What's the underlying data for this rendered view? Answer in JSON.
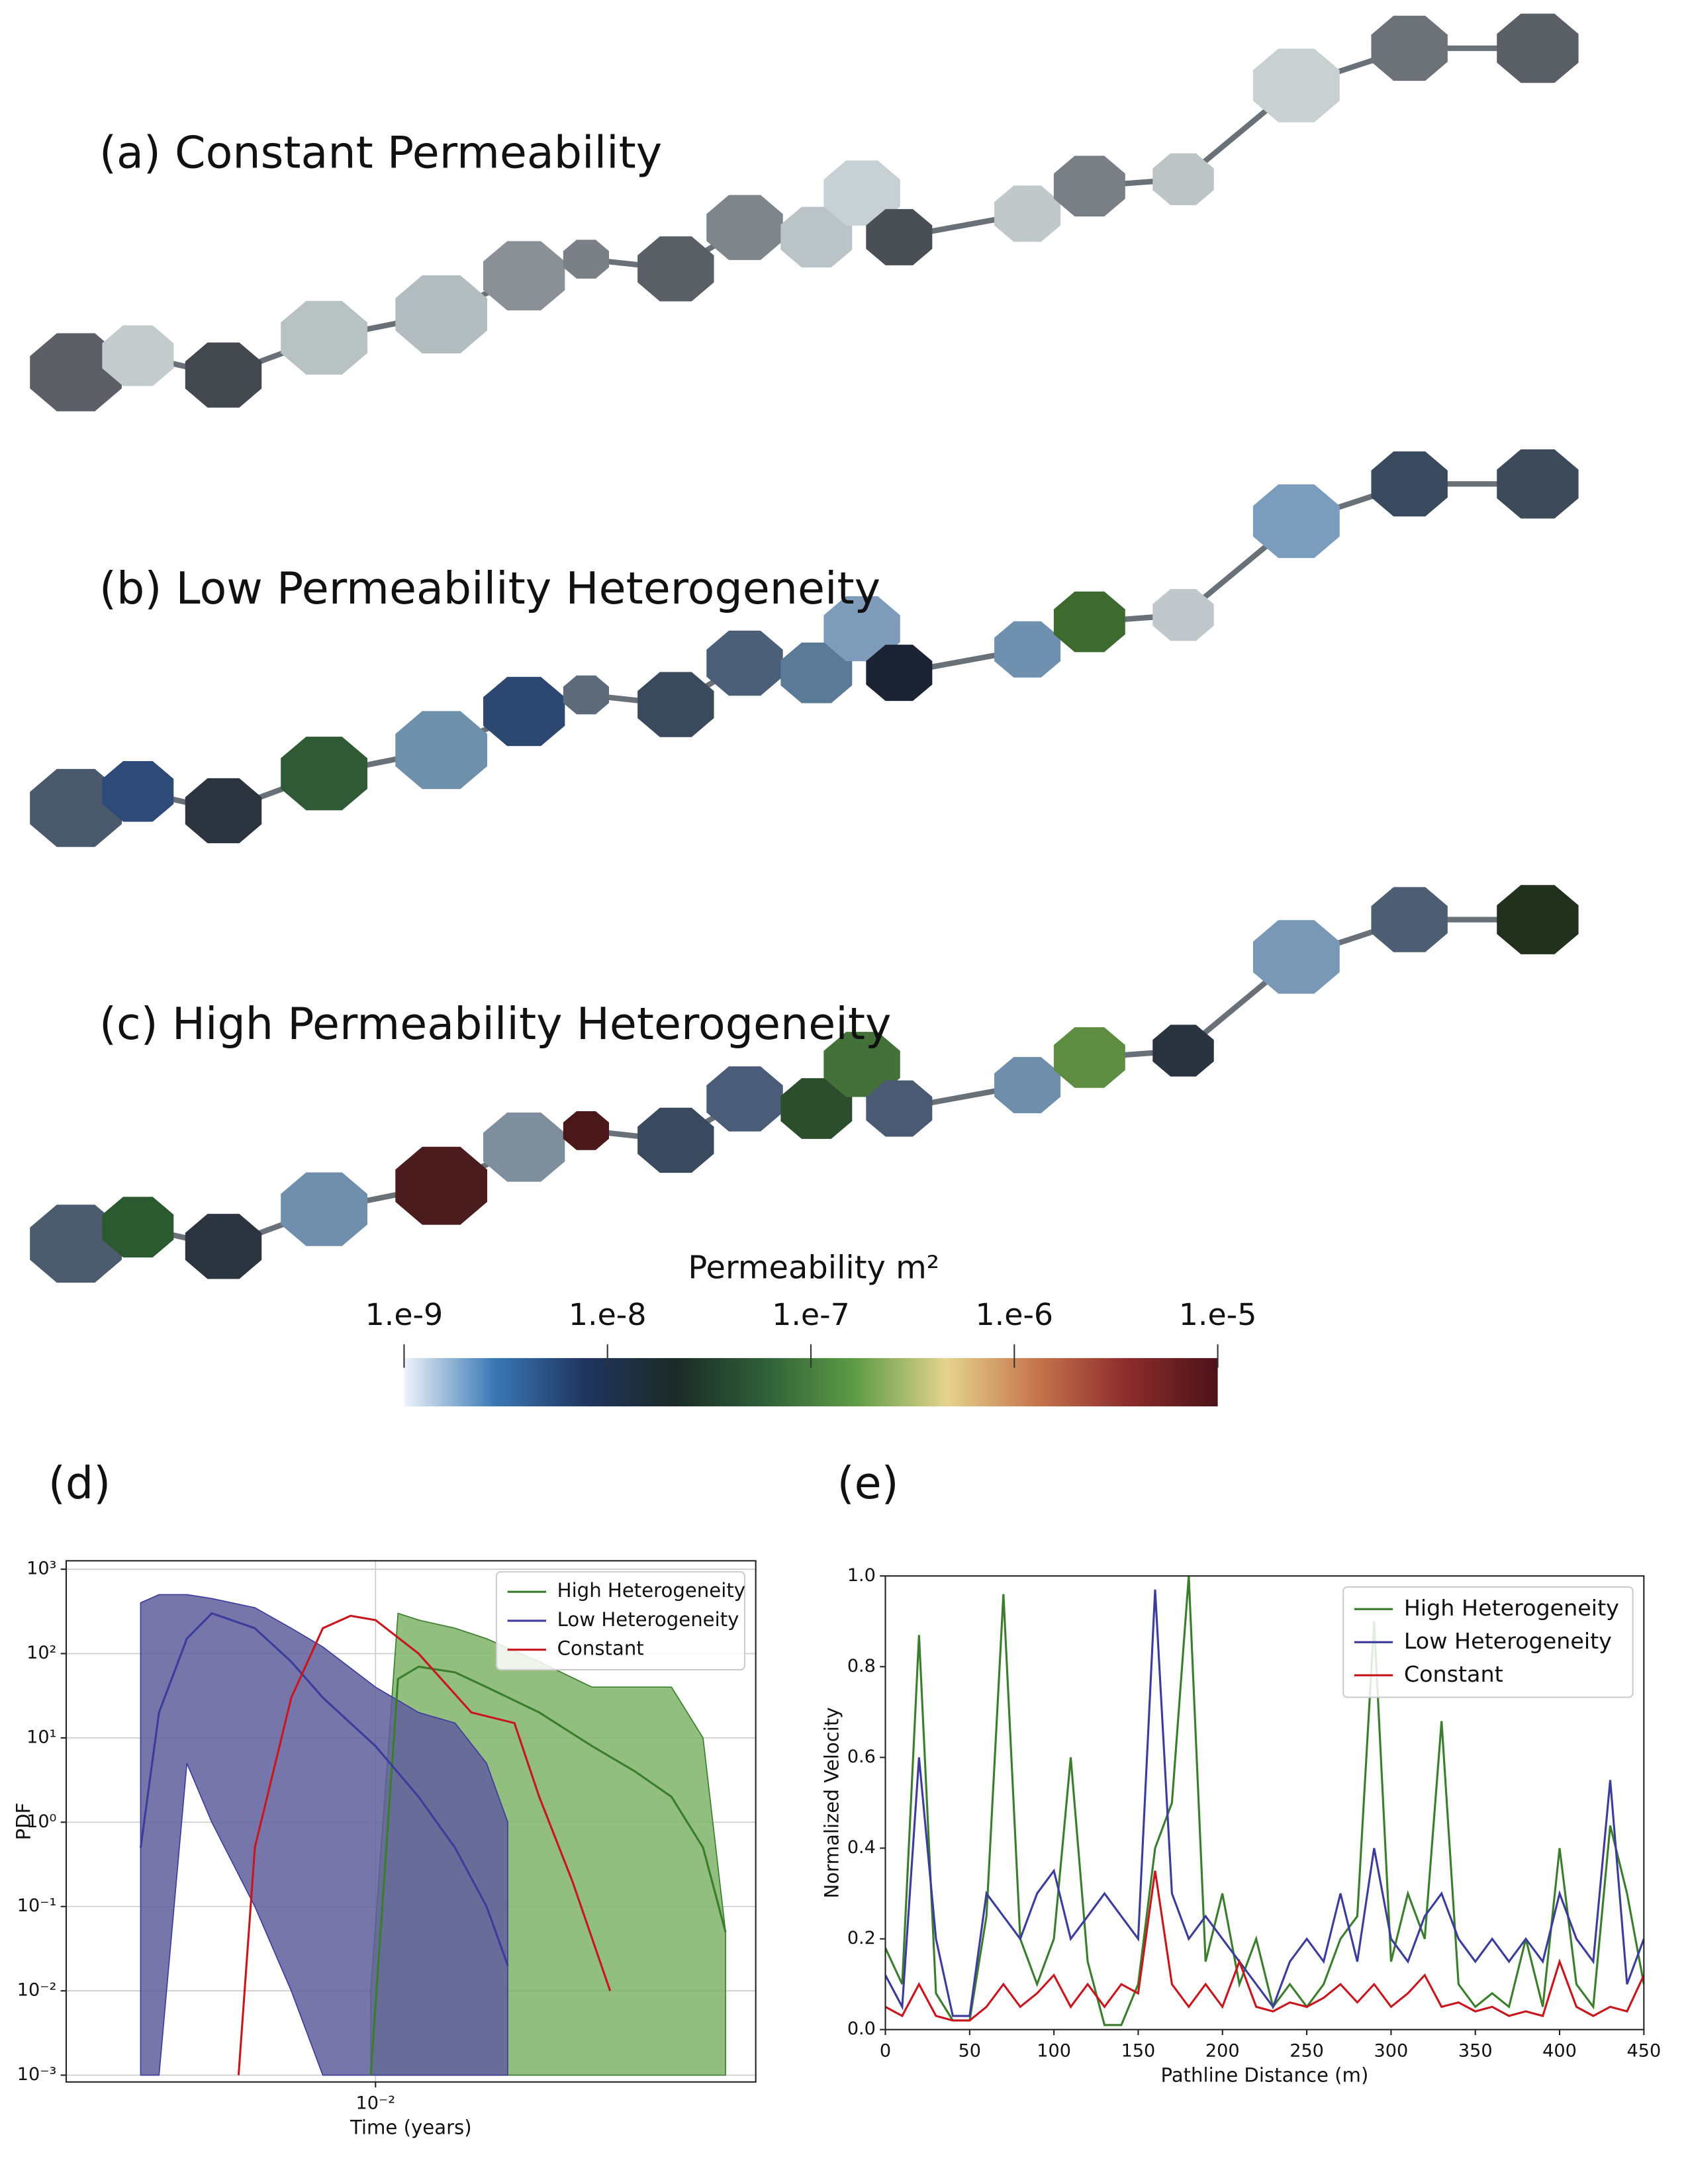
{
  "panels": [
    {
      "label": "(a) Constant Permeability"
    },
    {
      "label": "(b) Low Permeability Heterogeneity"
    },
    {
      "label": "(c) High Permeability Heterogeneity"
    }
  ],
  "colorbar": {
    "title": "Permeability m²",
    "lim": [
      1e-09,
      1e-05
    ],
    "ticks": [
      {
        "value": 1e-09,
        "label": "1.e-9"
      },
      {
        "value": 1e-08,
        "label": "1.e-8"
      },
      {
        "value": 1e-07,
        "label": "1.e-7"
      },
      {
        "value": 1e-06,
        "label": "1.e-6"
      },
      {
        "value": 1e-05,
        "label": "1.e-5"
      }
    ],
    "colors": [
      "#eef4fa",
      "#3a78b4",
      "#1f3560",
      "#1b2a26",
      "#2f6038",
      "#5f9c46",
      "#e4d38e",
      "#c6754c",
      "#8c2c2c",
      "#4c1218"
    ]
  },
  "chart_data": [
    {
      "type": "line",
      "panel_label": "(d)",
      "x_label": "Time (years)",
      "y_label": "PDF",
      "xscale": "log",
      "yscale": "log",
      "xlim": [
        0.0027,
        0.05
      ],
      "ylim": [
        0.00083,
        1260
      ],
      "xticks": [
        {
          "value": 0.01,
          "label": "10⁻²"
        }
      ],
      "yticks": [
        {
          "value": 0.001,
          "label": "10⁻³"
        },
        {
          "value": 0.01,
          "label": "10⁻²"
        },
        {
          "value": 0.1,
          "label": "10⁻¹"
        },
        {
          "value": 1,
          "label": "10⁰"
        },
        {
          "value": 10,
          "label": "10¹"
        },
        {
          "value": 100,
          "label": "10²"
        },
        {
          "value": 1000,
          "label": "10³"
        }
      ],
      "grid": true,
      "legend": "upper right",
      "series": [
        {
          "name": "High Heterogeneity",
          "color": "#3a7d2c",
          "fill_color": "#7fb368",
          "x": [
            0.0098,
            0.011,
            0.012,
            0.014,
            0.016,
            0.02,
            0.025,
            0.03,
            0.035,
            0.04,
            0.044
          ],
          "values": [
            0.001,
            50,
            70,
            60,
            40,
            20,
            8,
            4,
            2,
            0.5,
            0.05
          ],
          "upper": [
            0.01,
            300,
            250,
            200,
            150,
            80,
            40,
            40,
            40,
            10,
            0.05
          ],
          "lower": [
            0.001,
            0.001,
            0.001,
            0.001,
            0.001,
            0.001,
            0.001,
            0.001,
            0.001,
            0.001,
            0.001
          ]
        },
        {
          "name": "Low Heterogeneity",
          "color": "#3c3c9c",
          "fill_color": "#5f5e9c",
          "x": [
            0.0037,
            0.004,
            0.0045,
            0.005,
            0.006,
            0.007,
            0.008,
            0.01,
            0.012,
            0.014,
            0.016,
            0.0175
          ],
          "values": [
            0.5,
            20,
            150,
            300,
            200,
            80,
            30,
            8,
            2,
            0.5,
            0.1,
            0.02
          ],
          "upper": [
            400,
            500,
            500,
            450,
            350,
            200,
            120,
            40,
            20,
            15,
            5,
            1
          ],
          "lower": [
            0.001,
            0.001,
            5,
            1,
            0.1,
            0.01,
            0.001,
            0.001,
            0.001,
            0.001,
            0.001,
            0.001
          ]
        },
        {
          "name": "Constant",
          "color": "#c8161e",
          "x": [
            0.0056,
            0.006,
            0.007,
            0.008,
            0.009,
            0.01,
            0.012,
            0.015,
            0.018,
            0.02,
            0.023,
            0.027
          ],
          "values": [
            0.001,
            0.5,
            30,
            200,
            280,
            250,
            100,
            20,
            15,
            2,
            0.2,
            0.01
          ]
        }
      ]
    },
    {
      "type": "line",
      "panel_label": "(e)",
      "x_label": "Pathline Distance (m)",
      "y_label": "Normalized Velocity",
      "xlim": [
        0,
        450
      ],
      "ylim": [
        0,
        1
      ],
      "xticks": [
        0,
        50,
        100,
        150,
        200,
        250,
        300,
        350,
        400,
        450
      ],
      "yticks": [
        {
          "value": 0,
          "label": "0.0"
        },
        0.2,
        0.4,
        0.6,
        0.8,
        {
          "value": 1,
          "label": "1.0"
        }
      ],
      "grid": false,
      "legend": "upper right",
      "series": [
        {
          "name": "High Heterogeneity",
          "color": "#3a7d2c",
          "x": [
            0,
            10,
            20,
            30,
            40,
            50,
            60,
            70,
            80,
            90,
            100,
            110,
            120,
            130,
            140,
            150,
            160,
            170,
            180,
            190,
            200,
            210,
            220,
            230,
            240,
            250,
            260,
            270,
            280,
            290,
            300,
            310,
            320,
            330,
            340,
            350,
            360,
            370,
            380,
            390,
            400,
            410,
            420,
            430,
            440,
            450
          ],
          "values": [
            0.18,
            0.1,
            0.87,
            0.08,
            0.02,
            0.02,
            0.25,
            0.96,
            0.2,
            0.1,
            0.2,
            0.6,
            0.15,
            0.01,
            0.01,
            0.1,
            0.4,
            0.5,
            1.0,
            0.15,
            0.3,
            0.1,
            0.2,
            0.05,
            0.1,
            0.05,
            0.1,
            0.2,
            0.25,
            0.9,
            0.15,
            0.3,
            0.2,
            0.68,
            0.1,
            0.05,
            0.08,
            0.05,
            0.2,
            0.05,
            0.4,
            0.1,
            0.05,
            0.45,
            0.3,
            0.1
          ]
        },
        {
          "name": "Low Heterogeneity",
          "color": "#3c3c9c",
          "x": [
            0,
            10,
            20,
            30,
            40,
            50,
            60,
            70,
            80,
            90,
            100,
            110,
            120,
            130,
            140,
            150,
            160,
            170,
            180,
            190,
            200,
            210,
            220,
            230,
            240,
            250,
            260,
            270,
            280,
            290,
            300,
            310,
            320,
            330,
            340,
            350,
            360,
            370,
            380,
            390,
            400,
            410,
            420,
            430,
            440,
            450
          ],
          "values": [
            0.12,
            0.05,
            0.6,
            0.2,
            0.03,
            0.03,
            0.3,
            0.25,
            0.2,
            0.3,
            0.35,
            0.2,
            0.25,
            0.3,
            0.25,
            0.2,
            0.97,
            0.3,
            0.2,
            0.25,
            0.2,
            0.15,
            0.1,
            0.05,
            0.15,
            0.2,
            0.15,
            0.3,
            0.15,
            0.4,
            0.2,
            0.15,
            0.25,
            0.3,
            0.2,
            0.15,
            0.2,
            0.15,
            0.2,
            0.15,
            0.3,
            0.2,
            0.15,
            0.55,
            0.1,
            0.2
          ]
        },
        {
          "name": "Constant",
          "color": "#c8161e",
          "x": [
            0,
            10,
            20,
            30,
            40,
            50,
            60,
            70,
            80,
            90,
            100,
            110,
            120,
            130,
            140,
            150,
            160,
            170,
            180,
            190,
            200,
            210,
            220,
            230,
            240,
            250,
            260,
            270,
            280,
            290,
            300,
            310,
            320,
            330,
            340,
            350,
            360,
            370,
            380,
            390,
            400,
            410,
            420,
            430,
            440,
            450
          ],
          "values": [
            0.05,
            0.03,
            0.1,
            0.03,
            0.02,
            0.02,
            0.05,
            0.1,
            0.05,
            0.08,
            0.12,
            0.05,
            0.1,
            0.05,
            0.1,
            0.08,
            0.35,
            0.1,
            0.05,
            0.1,
            0.05,
            0.15,
            0.05,
            0.04,
            0.06,
            0.05,
            0.07,
            0.1,
            0.06,
            0.1,
            0.05,
            0.08,
            0.12,
            0.05,
            0.06,
            0.04,
            0.05,
            0.03,
            0.04,
            0.03,
            0.15,
            0.05,
            0.03,
            0.05,
            0.04,
            0.12
          ]
        }
      ]
    }
  ]
}
